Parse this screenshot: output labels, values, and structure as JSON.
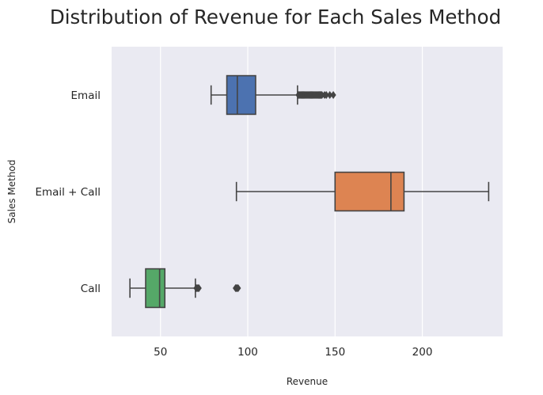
{
  "chart_data": {
    "type": "boxplot",
    "title": "Distribution of Revenue for Each Sales Method",
    "xlabel": "Revenue",
    "ylabel": "Sales Method",
    "xlim": [
      22,
      246
    ],
    "xticks": [
      50,
      100,
      150,
      200
    ],
    "grid": true,
    "orientation": "horizontal",
    "categories": [
      "Email",
      "Email + Call",
      "Call"
    ],
    "boxes": [
      {
        "name": "Email",
        "whislo": 79,
        "q1": 88,
        "med": 94,
        "q3": 104.5,
        "whishi": 128.5,
        "fliers": [
          129,
          129.5,
          130,
          130.5,
          131,
          131.5,
          132,
          132.5,
          133,
          133.5,
          134,
          134.5,
          135,
          135.5,
          136,
          136.5,
          137,
          137.5,
          138,
          138.5,
          139,
          139.5,
          140,
          140.5,
          141,
          141.5,
          142,
          142.5,
          144,
          145,
          147,
          149
        ],
        "color": "#4c72b0"
      },
      {
        "name": "Email + Call",
        "whislo": 93.5,
        "q1": 150,
        "med": 182,
        "q3": 189.5,
        "whishi": 238,
        "fliers": [],
        "color": "#dd8452"
      },
      {
        "name": "Call",
        "whislo": 32.5,
        "q1": 41.5,
        "med": 49.5,
        "q3": 52.5,
        "whishi": 70,
        "fliers": [
          70.5,
          71,
          71.5,
          72,
          93,
          93.5,
          94,
          94.5
        ],
        "color": "#55a868"
      }
    ]
  },
  "colors": {
    "plot_background": "#eaeaf2",
    "grid": "#ffffff",
    "line": "#444444",
    "text": "#262626"
  }
}
